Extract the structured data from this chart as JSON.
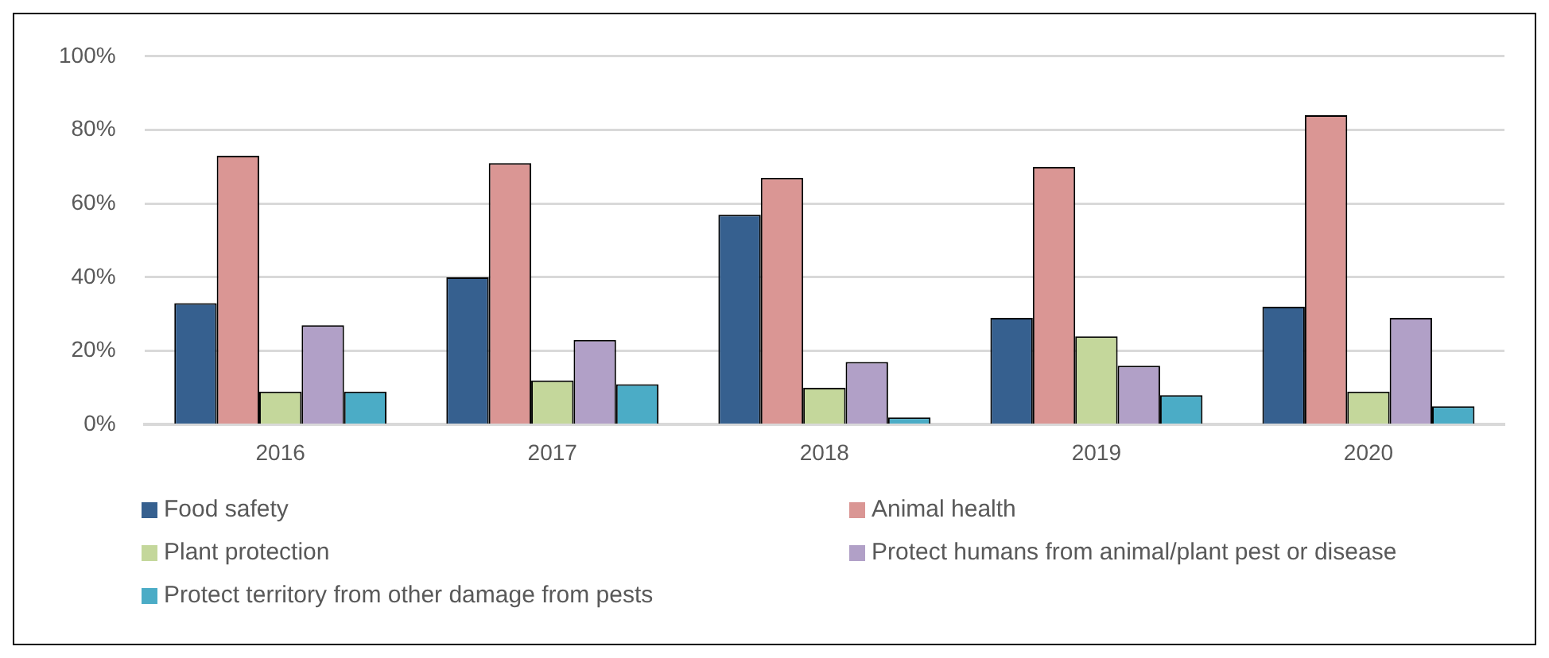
{
  "chart_data": {
    "type": "bar",
    "categories": [
      "2016",
      "2017",
      "2018",
      "2019",
      "2020"
    ],
    "series": [
      {
        "name": "Food safety",
        "color": "#36608f",
        "values": [
          33,
          40,
          57,
          29,
          32
        ]
      },
      {
        "name": "Animal health",
        "color": "#da9694",
        "values": [
          73,
          71,
          67,
          70,
          84
        ]
      },
      {
        "name": "Plant protection",
        "color": "#c4d79b",
        "values": [
          9,
          12,
          10,
          24,
          9
        ]
      },
      {
        "name": "Protect humans from animal/plant pest or disease",
        "color": "#b1a0c7",
        "values": [
          27,
          23,
          17,
          16,
          29
        ]
      },
      {
        "name": "Protect territory from other damage from pests",
        "color": "#4bacc6",
        "values": [
          9,
          11,
          2,
          8,
          5
        ]
      }
    ],
    "ylim": [
      0,
      100
    ],
    "yticks": [
      {
        "value": 0,
        "label": "0%"
      },
      {
        "value": 20,
        "label": "20%"
      },
      {
        "value": 40,
        "label": "40%"
      },
      {
        "value": 60,
        "label": "60%"
      },
      {
        "value": 80,
        "label": "80%"
      },
      {
        "value": 100,
        "label": "100%"
      }
    ],
    "grid": "y",
    "legend": "bottom"
  }
}
